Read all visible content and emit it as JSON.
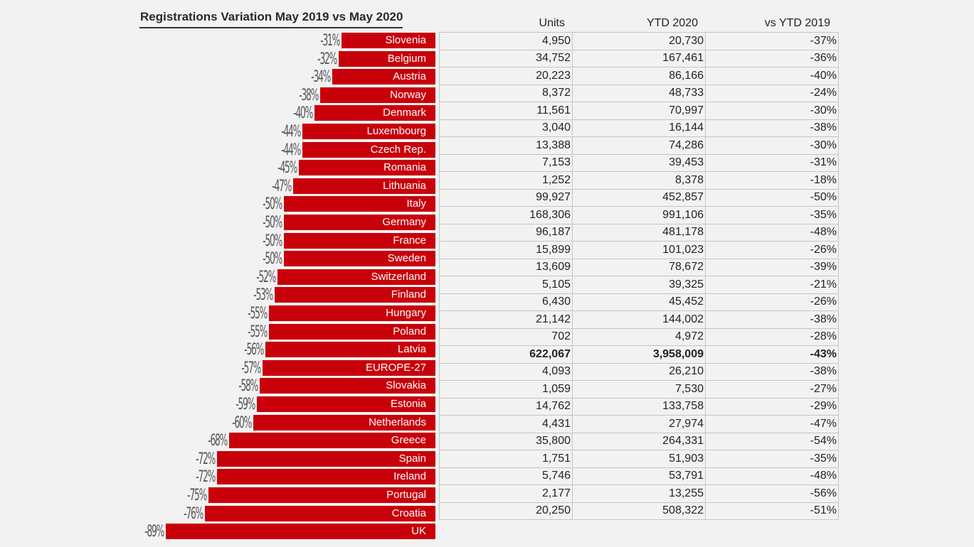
{
  "chart_data": {
    "type": "bar",
    "orientation": "horizontal",
    "title": "Registrations Variation May 2019 vs May 2020",
    "xlabel": "",
    "ylabel": "",
    "xlim": [
      -100,
      0
    ],
    "grid": false,
    "legend": "none",
    "bar_color": "#c8000a",
    "categories": [
      "Slovenia",
      "Belgium",
      "Austria",
      "Norway",
      "Denmark",
      "Luxembourg",
      "Czech Rep.",
      "Romania",
      "Lithuania",
      "Italy",
      "Germany",
      "France",
      "Sweden",
      "Switzerland",
      "Finland",
      "Hungary",
      "Poland",
      "Latvia",
      "EUROPE-27",
      "Slovakia",
      "Estonia",
      "Netherlands",
      "Greece",
      "Spain",
      "Ireland",
      "Portugal",
      "Croatia",
      "UK"
    ],
    "values": [
      -31,
      -32,
      -34,
      -38,
      -40,
      -44,
      -44,
      -45,
      -47,
      -50,
      -50,
      -50,
      -50,
      -52,
      -53,
      -55,
      -55,
      -56,
      -57,
      -58,
      -59,
      -60,
      -68,
      -72,
      -72,
      -75,
      -76,
      -89
    ],
    "value_labels": [
      "-31%",
      "-32%",
      "-34%",
      "-38%",
      "-40%",
      "-44%",
      "-44%",
      "-45%",
      "-47%",
      "-50%",
      "-50%",
      "-50%",
      "-50%",
      "-52%",
      "-53%",
      "-55%",
      "-55%",
      "-56%",
      "-57%",
      "-58%",
      "-59%",
      "-60%",
      "-68%",
      "-72%",
      "-72%",
      "-75%",
      "-76%",
      "-89%"
    ]
  },
  "table": {
    "headers": [
      "Units",
      "YTD 2020",
      "vs YTD 2019"
    ],
    "rows": [
      {
        "country": "Slovenia",
        "units": "4,950",
        "ytd": "20,730",
        "vs": "-37%"
      },
      {
        "country": "Belgium",
        "units": "34,752",
        "ytd": "167,461",
        "vs": "-36%"
      },
      {
        "country": "Austria",
        "units": "20,223",
        "ytd": "86,166",
        "vs": "-40%"
      },
      {
        "country": "Norway",
        "units": "8,372",
        "ytd": "48,733",
        "vs": "-24%"
      },
      {
        "country": "Denmark",
        "units": "11,561",
        "ytd": "70,997",
        "vs": "-30%"
      },
      {
        "country": "Luxembourg",
        "units": "3,040",
        "ytd": "16,144",
        "vs": "-38%"
      },
      {
        "country": "Czech Rep.",
        "units": "13,388",
        "ytd": "74,286",
        "vs": "-30%"
      },
      {
        "country": "Romania",
        "units": "7,153",
        "ytd": "39,453",
        "vs": "-31%"
      },
      {
        "country": "Lithuania",
        "units": "1,252",
        "ytd": "8,378",
        "vs": "-18%"
      },
      {
        "country": "Italy",
        "units": "99,927",
        "ytd": "452,857",
        "vs": "-50%"
      },
      {
        "country": "Germany",
        "units": "168,306",
        "ytd": "991,106",
        "vs": "-35%"
      },
      {
        "country": "France",
        "units": "96,187",
        "ytd": "481,178",
        "vs": "-48%"
      },
      {
        "country": "Sweden",
        "units": "15,899",
        "ytd": "101,023",
        "vs": "-26%"
      },
      {
        "country": "Switzerland",
        "units": "13,609",
        "ytd": "78,672",
        "vs": "-39%"
      },
      {
        "country": "Finland",
        "units": "5,105",
        "ytd": "39,325",
        "vs": "-21%"
      },
      {
        "country": "Hungary",
        "units": "6,430",
        "ytd": "45,452",
        "vs": "-26%"
      },
      {
        "country": "Poland",
        "units": "21,142",
        "ytd": "144,002",
        "vs": "-38%"
      },
      {
        "country": "Latvia",
        "units": "702",
        "ytd": "4,972",
        "vs": "-28%"
      },
      {
        "country": "EUROPE-27",
        "units": "622,067",
        "ytd": "3,958,009",
        "vs": "-43%",
        "total": true
      },
      {
        "country": "Slovakia",
        "units": "4,093",
        "ytd": "26,210",
        "vs": "-38%"
      },
      {
        "country": "Estonia",
        "units": "1,059",
        "ytd": "7,530",
        "vs": "-27%"
      },
      {
        "country": "Netherlands",
        "units": "14,762",
        "ytd": "133,758",
        "vs": "-29%"
      },
      {
        "country": "Greece",
        "units": "4,431",
        "ytd": "27,974",
        "vs": "-47%"
      },
      {
        "country": "Spain",
        "units": "35,800",
        "ytd": "264,331",
        "vs": "-54%"
      },
      {
        "country": "Ireland",
        "units": "1,751",
        "ytd": "51,903",
        "vs": "-35%"
      },
      {
        "country": "Portugal",
        "units": "5,746",
        "ytd": "53,791",
        "vs": "-48%"
      },
      {
        "country": "Croatia",
        "units": "2,177",
        "ytd": "13,255",
        "vs": "-56%"
      },
      {
        "country": "UK",
        "units": "20,250",
        "ytd": "508,322",
        "vs": "-51%"
      }
    ]
  }
}
